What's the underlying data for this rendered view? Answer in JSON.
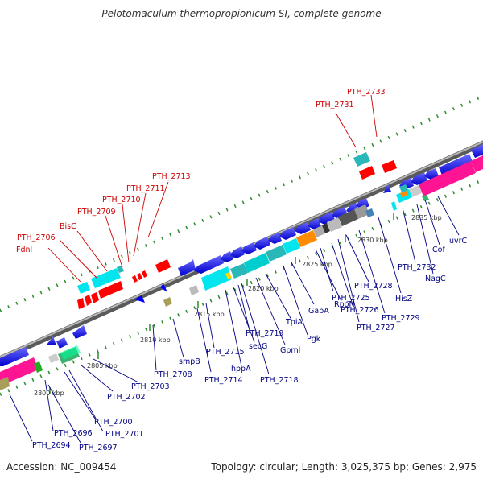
{
  "title": "Pelotomaculum thermopropionicum SI, complete genome",
  "footer": {
    "accession": "Accession: NC_009454",
    "summary": "Topology: circular; Length: 3,025,375 bp; Genes: 2,975"
  },
  "colors": {
    "backbone": "#8a8a8a",
    "tick": "#2e8b2e",
    "rna_gene": "#ff0000",
    "protein_gene": "#0000ff",
    "label_red": "#cc0000",
    "label_blue": "#000080",
    "cyan": "#00e5ee",
    "teal": "#2ab7b7",
    "pink": "#ff1493",
    "orange": "#ff8c00",
    "gray": "#999999",
    "dark_gray": "#555555",
    "olive": "#a89e5a",
    "green": "#22aa22",
    "sea_green": "#3cb371",
    "steel_blue": "#4682b4"
  },
  "kbp_labels": [
    "2800 kbp",
    "2805 kbp",
    "2810 kbp",
    "2815 kbp",
    "2820 kbp",
    "2825 kbp",
    "2830 kbp",
    "2835 kbp"
  ],
  "genes": [
    {
      "label": "Fdnl",
      "color": "red"
    },
    {
      "label": "PTH_2706",
      "color": "red"
    },
    {
      "label": "BisC",
      "color": "red"
    },
    {
      "label": "PTH_2709",
      "color": "red"
    },
    {
      "label": "PTH_2710",
      "color": "red"
    },
    {
      "label": "PTH_2711",
      "color": "red"
    },
    {
      "label": "PTH_2713",
      "color": "red"
    },
    {
      "label": "PTH_2731",
      "color": "red"
    },
    {
      "label": "PTH_2733",
      "color": "red"
    },
    {
      "label": "PTH_2694",
      "color": "blue"
    },
    {
      "label": "PTH_2696",
      "color": "blue"
    },
    {
      "label": "PTH_2697",
      "color": "blue"
    },
    {
      "label": "PTH_2700",
      "color": "blue"
    },
    {
      "label": "PTH_2701",
      "color": "blue"
    },
    {
      "label": "PTH_2702",
      "color": "blue"
    },
    {
      "label": "PTH_2703",
      "color": "blue"
    },
    {
      "label": "PTH_2708",
      "color": "blue"
    },
    {
      "label": "smpB",
      "color": "blue"
    },
    {
      "label": "PTH_2714",
      "color": "blue"
    },
    {
      "label": "PTH_2715",
      "color": "blue"
    },
    {
      "label": "hppA",
      "color": "blue"
    },
    {
      "label": "secG",
      "color": "blue"
    },
    {
      "label": "PTH_2719",
      "color": "blue"
    },
    {
      "label": "PTH_2718",
      "color": "blue"
    },
    {
      "label": "Gpml",
      "color": "blue"
    },
    {
      "label": "TpiA",
      "color": "blue"
    },
    {
      "label": "Pgk",
      "color": "blue"
    },
    {
      "label": "GapA",
      "color": "blue"
    },
    {
      "label": "RpoN",
      "color": "blue"
    },
    {
      "label": "PTH_2725",
      "color": "blue"
    },
    {
      "label": "PTH_2726",
      "color": "blue"
    },
    {
      "label": "PTH_2727",
      "color": "blue"
    },
    {
      "label": "PTH_2728",
      "color": "blue"
    },
    {
      "label": "PTH_2729",
      "color": "blue"
    },
    {
      "label": "HisZ",
      "color": "blue"
    },
    {
      "label": "PTH_2732",
      "color": "blue"
    },
    {
      "label": "NagC",
      "color": "blue"
    },
    {
      "label": "Cof",
      "color": "blue"
    },
    {
      "label": "uvrC",
      "color": "blue"
    }
  ]
}
